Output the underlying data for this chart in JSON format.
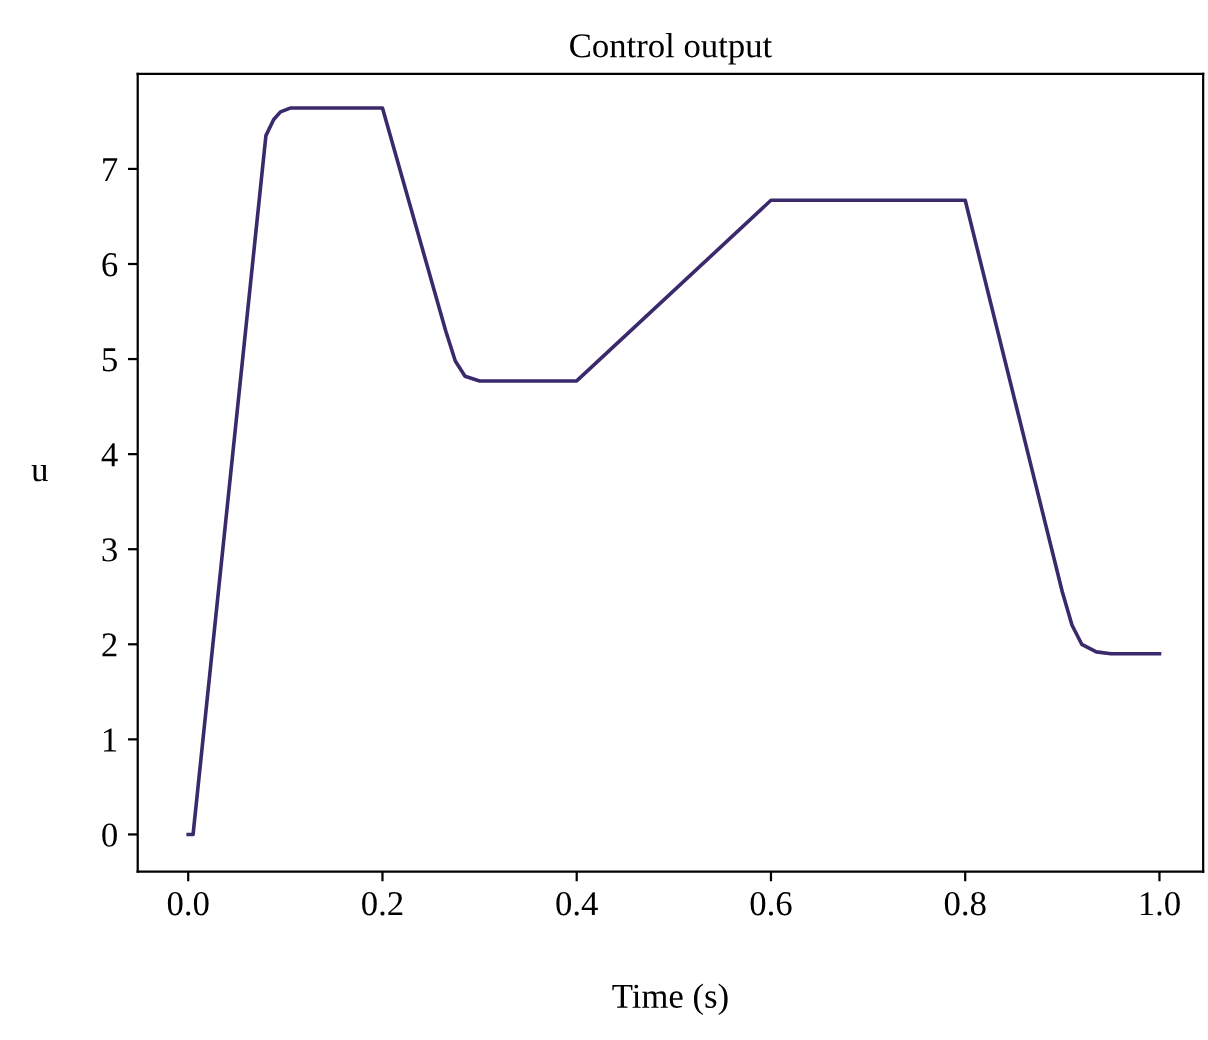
{
  "chart_data": {
    "type": "line",
    "title": "Control output",
    "xlabel": "Time (s)",
    "ylabel": "u",
    "x": [
      0,
      0.005,
      0.08,
      0.088,
      0.095,
      0.105,
      0.2,
      0.265,
      0.275,
      0.285,
      0.3,
      0.4,
      0.6,
      0.8,
      0.9,
      0.91,
      0.92,
      0.935,
      0.95,
      1.0
    ],
    "series": [
      {
        "color": "#3b2a6b",
        "values": [
          0,
          0,
          7.35,
          7.52,
          7.6,
          7.64,
          7.64,
          5.3,
          4.98,
          4.82,
          4.77,
          4.77,
          6.67,
          6.67,
          2.55,
          2.2,
          2.0,
          1.92,
          1.9,
          1.9
        ]
      }
    ],
    "xlim": [
      -0.052,
      1.045
    ],
    "ylim": [
      -0.39,
      8.0
    ],
    "xticks": [
      {
        "value": 0,
        "label": "0.0"
      },
      0.2,
      0.4,
      0.6,
      0.8,
      {
        "value": 1,
        "label": "1.0"
      }
    ],
    "yticks": [
      0,
      1,
      2,
      3,
      4,
      5,
      6,
      7
    ],
    "marker": "none",
    "line_style": "solid"
  }
}
